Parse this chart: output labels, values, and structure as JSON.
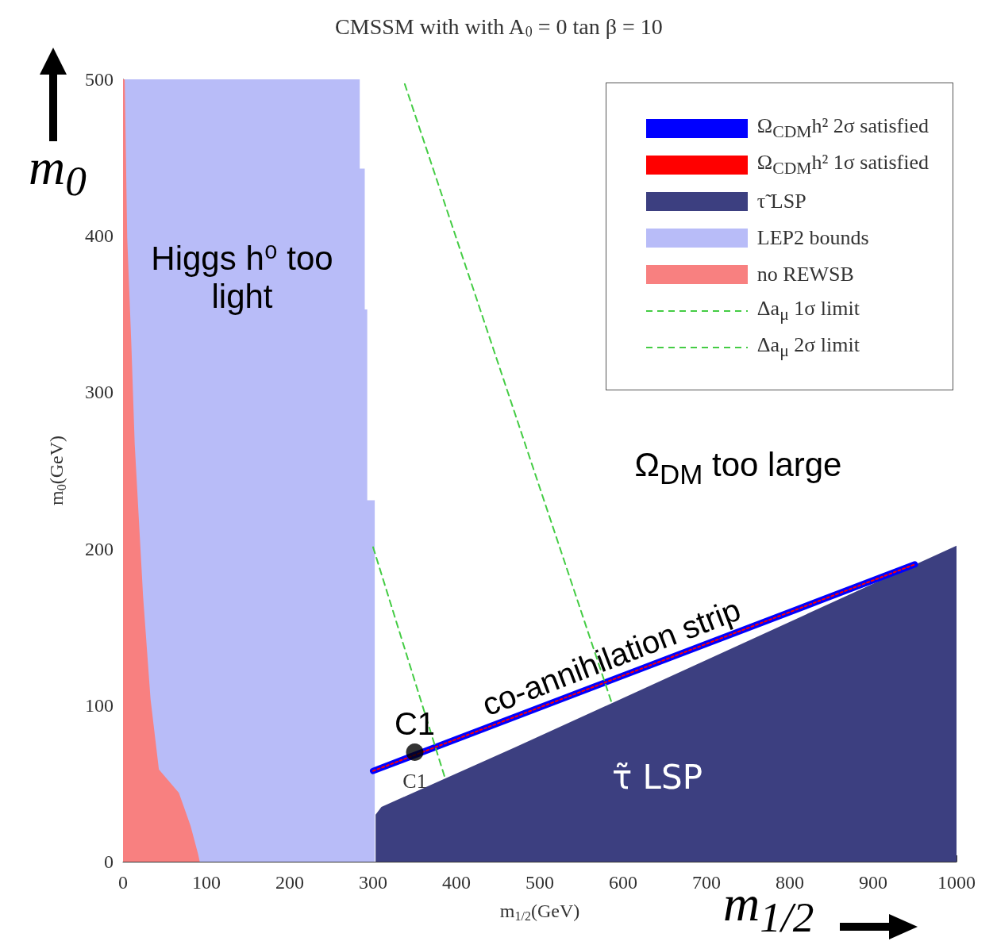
{
  "chart_data": {
    "type": "area",
    "title": "CMSSM with with A$_{0}$ = 0 tan β = 10",
    "xlabel": "m$_{1/2}$(GeV)",
    "ylabel": "m$_{0}$(GeV)",
    "xlim": [
      0,
      1000
    ],
    "ylim": [
      0,
      500
    ],
    "xticks": [
      0,
      100,
      200,
      300,
      400,
      500,
      600,
      700,
      800,
      900,
      1000
    ],
    "yticks": [
      0,
      100,
      200,
      300,
      400,
      500
    ],
    "grid": false,
    "legend": "top right",
    "series": [
      {
        "type": "line",
        "name": "Ω$_{CDM}$h² 2σ satisfied",
        "color": "#0000ff",
        "marker": "none",
        "line_style": "solid",
        "x": [
          300,
          950
        ],
        "values": [
          58,
          190
        ]
      },
      {
        "type": "line",
        "name": "Ω$_{CDM}$h² 1σ satisfied",
        "color": "#ff0000",
        "marker": "none",
        "line_style": "dotted",
        "x": [
          300,
          950
        ],
        "values": [
          58,
          190
        ]
      },
      {
        "type": "area",
        "name": "τ̃ LSP",
        "color": "#3c3f80",
        "x": [
          303,
          310,
          470,
          1000
        ],
        "values": [
          30,
          35,
          73,
          202
        ]
      },
      {
        "type": "area",
        "name": "LEP2 bounds",
        "color": "#b8bcf8",
        "x": [
          0,
          284,
          284,
          290,
          290,
          293,
          293,
          300,
          300,
          302,
          302
        ],
        "values": [
          500,
          500,
          443,
          443,
          353,
          353,
          231,
          231,
          231,
          231,
          0
        ]
      },
      {
        "type": "area",
        "name": "no REWSB",
        "color": "#f88080",
        "x": [
          0,
          2,
          5,
          10,
          14,
          24,
          33,
          43,
          67,
          81,
          90,
          92
        ],
        "values": [
          500,
          500,
          399,
          330,
          267,
          170,
          104,
          59,
          44,
          23,
          5,
          0
        ]
      },
      {
        "type": "line",
        "name": "Δa$_{μ}$ 1σ limit",
        "color": "#44cc44",
        "marker": "none",
        "line_style": "dashed",
        "x": [
          300,
          386
        ],
        "values": [
          201,
          54
        ]
      },
      {
        "type": "line",
        "name": "Δa$_{μ}$ 2σ limit",
        "color": "#44cc44",
        "marker": "none",
        "line_style": "dashed",
        "x": [
          338,
          586
        ],
        "values": [
          497,
          102
        ]
      },
      {
        "type": "scatter",
        "color": "#000000",
        "marker": "circle",
        "x": [
          350
        ],
        "values": [
          70
        ]
      }
    ],
    "annotations": [
      "Higgs h⁰ too light",
      "Ω$_{DM}$ too large",
      "co-annihilation strip",
      "τ̃ LSP",
      "m$_{0}$",
      "m$_{1/2}$",
      {
        "text": "C1",
        "x": 350,
        "y": 70
      },
      {
        "text": "C1",
        "x": 350,
        "y": 70
      }
    ]
  }
}
